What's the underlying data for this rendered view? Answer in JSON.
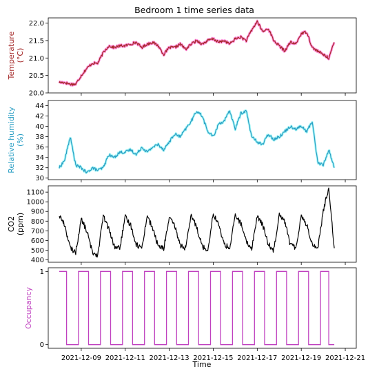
{
  "chart_data": {
    "type": "line",
    "title": "Bedroom 1 time series data",
    "xlabel": "Time",
    "x_ticks": [
      "2021-12-09",
      "2021-12-11",
      "2021-12-13",
      "2021-12-15",
      "2021-12-17",
      "2021-12-19",
      "2021-12-21"
    ],
    "x_range": [
      "2021-12-07T12:00",
      "2021-12-21T12:00"
    ],
    "data_range": [
      "2021-12-08T00:00",
      "2021-12-20T12:00"
    ],
    "panels": [
      {
        "id": "temperature",
        "ylabel": [
          "Temperature",
          "(°C)"
        ],
        "color": "#a52a2a",
        "halo_color": "#ff00aa",
        "ylim": [
          20.0,
          22.15
        ],
        "yticks": [
          "20.0",
          "20.5",
          "21.0",
          "21.5",
          "22.0"
        ],
        "x": [
          "2021-12-08T00:00",
          "2021-12-08T06:00",
          "2021-12-08T12:00",
          "2021-12-08T18:00",
          "2021-12-09T00:00",
          "2021-12-09T06:00",
          "2021-12-09T12:00",
          "2021-12-09T18:00",
          "2021-12-10T00:00",
          "2021-12-10T06:00",
          "2021-12-10T12:00",
          "2021-12-10T18:00",
          "2021-12-11T00:00",
          "2021-12-11T06:00",
          "2021-12-11T12:00",
          "2021-12-11T18:00",
          "2021-12-12T00:00",
          "2021-12-12T06:00",
          "2021-12-12T12:00",
          "2021-12-12T18:00",
          "2021-12-13T00:00",
          "2021-12-13T06:00",
          "2021-12-13T12:00",
          "2021-12-13T18:00",
          "2021-12-14T00:00",
          "2021-12-14T06:00",
          "2021-12-14T12:00",
          "2021-12-14T18:00",
          "2021-12-15T00:00",
          "2021-12-15T06:00",
          "2021-12-15T12:00",
          "2021-12-15T18:00",
          "2021-12-16T00:00",
          "2021-12-16T06:00",
          "2021-12-16T12:00",
          "2021-12-16T18:00",
          "2021-12-17T00:00",
          "2021-12-17T06:00",
          "2021-12-17T12:00",
          "2021-12-17T18:00",
          "2021-12-18T00:00",
          "2021-12-18T06:00",
          "2021-12-18T12:00",
          "2021-12-18T18:00",
          "2021-12-19T00:00",
          "2021-12-19T06:00",
          "2021-12-19T12:00",
          "2021-12-19T18:00",
          "2021-12-20T00:00",
          "2021-12-20T06:00",
          "2021-12-20T12:00"
        ],
        "values": [
          20.3,
          20.3,
          20.25,
          20.25,
          20.5,
          20.7,
          20.85,
          20.85,
          21.15,
          21.35,
          21.3,
          21.35,
          21.35,
          21.4,
          21.45,
          21.3,
          21.4,
          21.45,
          21.35,
          21.1,
          21.3,
          21.3,
          21.4,
          21.25,
          21.4,
          21.5,
          21.4,
          21.5,
          21.55,
          21.45,
          21.5,
          21.4,
          21.55,
          21.6,
          21.5,
          21.8,
          22.05,
          21.75,
          21.85,
          21.5,
          21.35,
          21.2,
          21.45,
          21.4,
          21.7,
          21.75,
          21.3,
          21.2,
          21.1,
          21.0,
          21.45
        ]
      },
      {
        "id": "humidity",
        "ylabel": [
          "Relative humidity",
          "(%)"
        ],
        "color": "#2a9ec4",
        "halo_color": "#44eeee",
        "ylim": [
          29.7,
          45.0
        ],
        "yticks": [
          "30",
          "32",
          "34",
          "36",
          "38",
          "40",
          "42",
          "44"
        ],
        "x": [
          "2021-12-08T00:00",
          "2021-12-08T06:00",
          "2021-12-08T12:00",
          "2021-12-08T18:00",
          "2021-12-09T00:00",
          "2021-12-09T06:00",
          "2021-12-09T12:00",
          "2021-12-09T18:00",
          "2021-12-10T00:00",
          "2021-12-10T06:00",
          "2021-12-10T12:00",
          "2021-12-10T18:00",
          "2021-12-11T00:00",
          "2021-12-11T06:00",
          "2021-12-11T12:00",
          "2021-12-11T18:00",
          "2021-12-12T00:00",
          "2021-12-12T06:00",
          "2021-12-12T12:00",
          "2021-12-12T18:00",
          "2021-12-13T00:00",
          "2021-12-13T06:00",
          "2021-12-13T12:00",
          "2021-12-13T18:00",
          "2021-12-14T00:00",
          "2021-12-14T06:00",
          "2021-12-14T12:00",
          "2021-12-14T18:00",
          "2021-12-15T00:00",
          "2021-12-15T06:00",
          "2021-12-15T12:00",
          "2021-12-15T18:00",
          "2021-12-16T00:00",
          "2021-12-16T06:00",
          "2021-12-16T12:00",
          "2021-12-16T18:00",
          "2021-12-17T00:00",
          "2021-12-17T06:00",
          "2021-12-17T12:00",
          "2021-12-17T18:00",
          "2021-12-18T00:00",
          "2021-12-18T06:00",
          "2021-12-18T12:00",
          "2021-12-18T18:00",
          "2021-12-19T00:00",
          "2021-12-19T06:00",
          "2021-12-19T12:00",
          "2021-12-19T18:00",
          "2021-12-20T00:00",
          "2021-12-20T06:00",
          "2021-12-20T12:00"
        ],
        "values": [
          32,
          33.5,
          38,
          32.5,
          32,
          31,
          32,
          31.5,
          32,
          34.5,
          34,
          35,
          35,
          35.5,
          34.5,
          36,
          35,
          36,
          36.5,
          35.5,
          37,
          38.5,
          38,
          39.5,
          41,
          43,
          42,
          39,
          38,
          40.5,
          41,
          43,
          39.5,
          42.5,
          43,
          38,
          37,
          36.5,
          38.5,
          37.5,
          38,
          39,
          40,
          39.5,
          40,
          39,
          41,
          33,
          32.5,
          35.5,
          32
        ]
      },
      {
        "id": "co2",
        "ylabel": [
          "CO2",
          "(ppm)"
        ],
        "color": "#000000",
        "ylim": [
          375,
          1165
        ],
        "yticks": [
          "400",
          "500",
          "600",
          "700",
          "800",
          "900",
          "1000",
          "1100"
        ],
        "x": [
          "2021-12-08T00:00",
          "2021-12-08T06:00",
          "2021-12-08T12:00",
          "2021-12-08T18:00",
          "2021-12-09T00:00",
          "2021-12-09T06:00",
          "2021-12-09T12:00",
          "2021-12-09T18:00",
          "2021-12-10T00:00",
          "2021-12-10T06:00",
          "2021-12-10T12:00",
          "2021-12-10T18:00",
          "2021-12-11T00:00",
          "2021-12-11T06:00",
          "2021-12-11T12:00",
          "2021-12-11T18:00",
          "2021-12-12T00:00",
          "2021-12-12T06:00",
          "2021-12-12T12:00",
          "2021-12-12T18:00",
          "2021-12-13T00:00",
          "2021-12-13T06:00",
          "2021-12-13T12:00",
          "2021-12-13T18:00",
          "2021-12-14T00:00",
          "2021-12-14T06:00",
          "2021-12-14T12:00",
          "2021-12-14T18:00",
          "2021-12-15T00:00",
          "2021-12-15T06:00",
          "2021-12-15T12:00",
          "2021-12-15T18:00",
          "2021-12-16T00:00",
          "2021-12-16T06:00",
          "2021-12-16T12:00",
          "2021-12-16T18:00",
          "2021-12-17T00:00",
          "2021-12-17T06:00",
          "2021-12-17T12:00",
          "2021-12-17T18:00",
          "2021-12-18T00:00",
          "2021-12-18T06:00",
          "2021-12-18T12:00",
          "2021-12-18T18:00",
          "2021-12-19T00:00",
          "2021-12-19T06:00",
          "2021-12-19T12:00",
          "2021-12-19T18:00",
          "2021-12-20T00:00",
          "2021-12-20T06:00",
          "2021-12-20T12:00"
        ],
        "values": [
          860,
          760,
          520,
          480,
          820,
          700,
          480,
          450,
          850,
          720,
          540,
          520,
          840,
          760,
          560,
          520,
          860,
          720,
          540,
          520,
          830,
          750,
          550,
          520,
          860,
          740,
          540,
          500,
          880,
          760,
          560,
          520,
          860,
          780,
          580,
          520,
          850,
          760,
          560,
          500,
          880,
          800,
          560,
          520,
          860,
          760,
          560,
          520,
          900,
          1150,
          520
        ]
      },
      {
        "id": "occupancy",
        "ylabel": [
          "Occupancy"
        ],
        "color": "#bf40bf",
        "ylim": [
          -0.05,
          1.05
        ],
        "yticks": [
          "0",
          "1"
        ],
        "on_intervals": [
          [
            "2021-12-08T00:00",
            "2021-12-08T08:00"
          ],
          [
            "2021-12-08T21:00",
            "2021-12-09T08:00"
          ],
          [
            "2021-12-09T21:00",
            "2021-12-10T08:00"
          ],
          [
            "2021-12-10T21:00",
            "2021-12-11T08:00"
          ],
          [
            "2021-12-11T21:00",
            "2021-12-12T08:00"
          ],
          [
            "2021-12-12T21:00",
            "2021-12-13T08:00"
          ],
          [
            "2021-12-13T21:00",
            "2021-12-14T08:00"
          ],
          [
            "2021-12-14T21:00",
            "2021-12-15T08:00"
          ],
          [
            "2021-12-15T21:00",
            "2021-12-16T08:00"
          ],
          [
            "2021-12-16T21:00",
            "2021-12-17T08:00"
          ],
          [
            "2021-12-17T21:00",
            "2021-12-18T08:00"
          ],
          [
            "2021-12-18T21:00",
            "2021-12-19T08:00"
          ],
          [
            "2021-12-19T21:00",
            "2021-12-20T06:00"
          ]
        ],
        "end": "2021-12-20T12:00"
      }
    ]
  }
}
